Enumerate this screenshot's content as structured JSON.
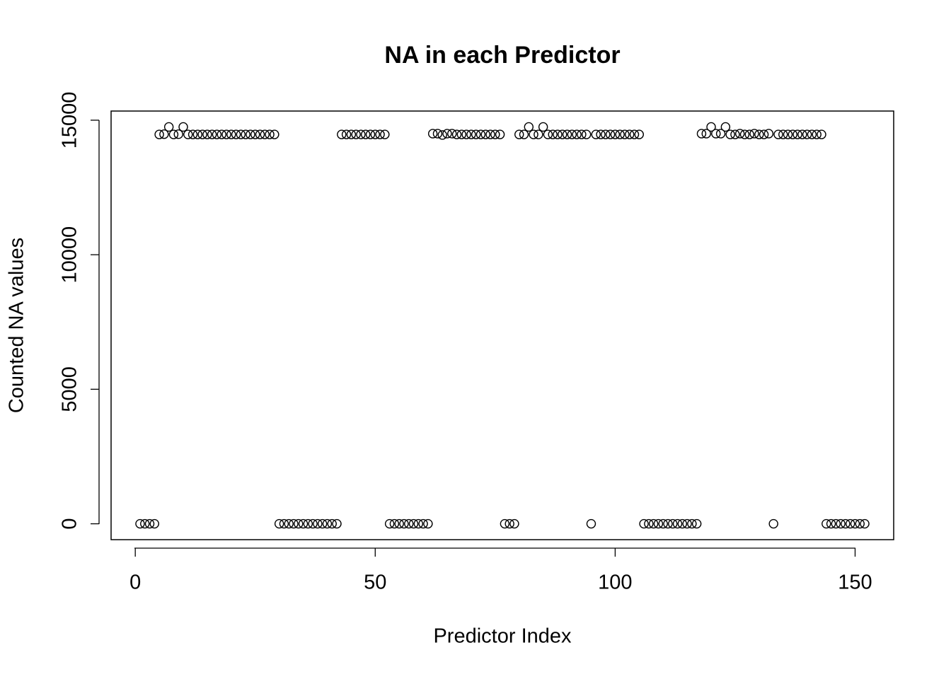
{
  "chart_data": {
    "type": "scatter",
    "title": "NA in each Predictor",
    "x_label": "Predictor Index",
    "y_label": "Counted NA values",
    "x": [
      1,
      2,
      3,
      4,
      5,
      6,
      7,
      8,
      9,
      10,
      11,
      12,
      13,
      14,
      15,
      16,
      17,
      18,
      19,
      20,
      21,
      22,
      23,
      24,
      25,
      26,
      27,
      28,
      29,
      30,
      31,
      32,
      33,
      34,
      35,
      36,
      37,
      38,
      39,
      40,
      41,
      42,
      43,
      44,
      45,
      46,
      47,
      48,
      49,
      50,
      51,
      52,
      53,
      54,
      55,
      56,
      57,
      58,
      59,
      60,
      61,
      62,
      63,
      64,
      65,
      66,
      67,
      68,
      69,
      70,
      71,
      72,
      73,
      74,
      75,
      76,
      77,
      78,
      79,
      80,
      81,
      82,
      83,
      84,
      85,
      86,
      87,
      88,
      89,
      90,
      91,
      92,
      93,
      94,
      95,
      96,
      97,
      98,
      99,
      100,
      101,
      102,
      103,
      104,
      105,
      106,
      107,
      108,
      109,
      110,
      111,
      112,
      113,
      114,
      115,
      116,
      117,
      118,
      119,
      120,
      121,
      122,
      123,
      124,
      125,
      126,
      127,
      128,
      129,
      130,
      131,
      132,
      133,
      134,
      135,
      136,
      137,
      138,
      139,
      140,
      141,
      142,
      143,
      144,
      145,
      146,
      147,
      148,
      149,
      150,
      151,
      152
    ],
    "values": [
      0,
      0,
      0,
      0,
      14470,
      14480,
      14750,
      14470,
      14480,
      14750,
      14470,
      14470,
      14470,
      14470,
      14470,
      14470,
      14470,
      14470,
      14470,
      14470,
      14470,
      14470,
      14470,
      14470,
      14470,
      14470,
      14470,
      14470,
      14470,
      0,
      0,
      0,
      0,
      0,
      0,
      0,
      0,
      0,
      0,
      0,
      0,
      0,
      14470,
      14470,
      14470,
      14470,
      14470,
      14470,
      14470,
      14470,
      14470,
      14470,
      0,
      0,
      0,
      0,
      0,
      0,
      0,
      0,
      0,
      14500,
      14500,
      14450,
      14500,
      14500,
      14470,
      14470,
      14470,
      14470,
      14470,
      14470,
      14470,
      14470,
      14470,
      14470,
      0,
      0,
      0,
      14470,
      14470,
      14750,
      14470,
      14470,
      14750,
      14470,
      14470,
      14470,
      14470,
      14470,
      14470,
      14470,
      14470,
      14470,
      0,
      14470,
      14470,
      14470,
      14470,
      14470,
      14470,
      14470,
      14470,
      14470,
      14470,
      0,
      0,
      0,
      0,
      0,
      0,
      0,
      0,
      0,
      0,
      0,
      0,
      14500,
      14500,
      14750,
      14500,
      14500,
      14750,
      14470,
      14470,
      14500,
      14470,
      14470,
      14500,
      14470,
      14470,
      14500,
      0,
      14470,
      14470,
      14470,
      14470,
      14470,
      14470,
      14470,
      14470,
      14470,
      14470,
      0,
      0,
      0,
      0,
      0,
      0,
      0,
      0,
      0
    ],
    "color": "#000000",
    "xlim": [
      -5.04,
      158.04
    ],
    "xticks": [
      0,
      50,
      100,
      150
    ],
    "ylim": [
      -590,
      15340
    ],
    "yticks": [
      0,
      5000,
      10000,
      15000
    ]
  }
}
